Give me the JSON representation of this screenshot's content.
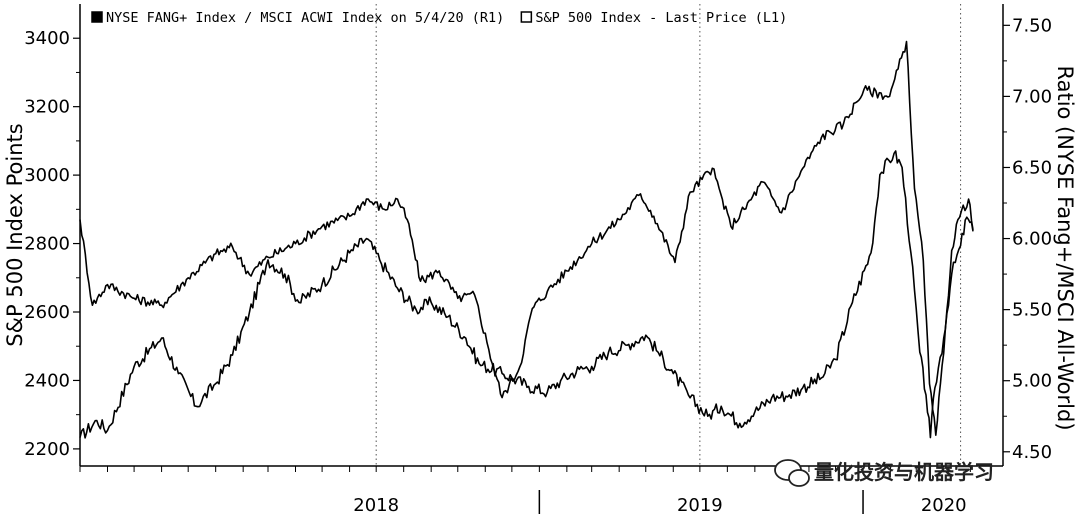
{
  "chart_data": {
    "type": "line",
    "title": "",
    "legend": {
      "placement": "top-left"
    },
    "grid": {
      "x": "dotted-vertical-at-year-mid",
      "y": false
    },
    "x_axis": {
      "labels": [
        "2018",
        "2019",
        "2020"
      ],
      "range": [
        "2017-08-01",
        "2020-05-04"
      ]
    },
    "y_axis_left": {
      "label": "S&P 500 Index Points",
      "ticks": [
        2200,
        2400,
        2600,
        2800,
        3000,
        3200,
        3400
      ],
      "range": [
        2150,
        3500
      ]
    },
    "y_axis_right": {
      "label": "Ratio (NYSE Fang+/MSCI All-World)",
      "ticks": [
        "4.50",
        "5.00",
        "5.50",
        "6.00",
        "6.50",
        "7.00",
        "7.50"
      ],
      "range": [
        4.4,
        7.65
      ]
    },
    "series": [
      {
        "name": "NYSE FANG+ Index / MSCI ACWI Index on 5/4/20 (R1)",
        "axis": "right",
        "marker": "filled-square",
        "color": "#000000",
        "points": [
          [
            "2017-08-01",
            4.6
          ],
          [
            "2017-08-20",
            4.72
          ],
          [
            "2017-09-01",
            4.65
          ],
          [
            "2017-10-01",
            5.1
          ],
          [
            "2017-11-01",
            5.3
          ],
          [
            "2017-11-20",
            5.05
          ],
          [
            "2017-12-10",
            4.82
          ],
          [
            "2018-01-01",
            4.98
          ],
          [
            "2018-01-20",
            5.18
          ],
          [
            "2018-02-08",
            5.48
          ],
          [
            "2018-03-01",
            5.85
          ],
          [
            "2018-03-20",
            5.75
          ],
          [
            "2018-04-05",
            5.55
          ],
          [
            "2018-05-01",
            5.68
          ],
          [
            "2018-06-01",
            5.9
          ],
          [
            "2018-06-20",
            6.0
          ],
          [
            "2018-07-05",
            5.85
          ],
          [
            "2018-07-25",
            5.65
          ],
          [
            "2018-08-15",
            5.5
          ],
          [
            "2018-09-01",
            5.55
          ],
          [
            "2018-09-20",
            5.45
          ],
          [
            "2018-10-10",
            5.3
          ],
          [
            "2018-10-25",
            5.12
          ],
          [
            "2018-11-20",
            5.05
          ],
          [
            "2018-12-01",
            5.02
          ],
          [
            "2018-12-20",
            4.96
          ],
          [
            "2019-01-10",
            4.92
          ],
          [
            "2019-01-25",
            5.0
          ],
          [
            "2019-02-15",
            5.08
          ],
          [
            "2019-03-01",
            5.1
          ],
          [
            "2019-03-20",
            5.2
          ],
          [
            "2019-04-10",
            5.25
          ],
          [
            "2019-05-01",
            5.32
          ],
          [
            "2019-05-15",
            5.2
          ],
          [
            "2019-06-01",
            5.05
          ],
          [
            "2019-06-20",
            4.88
          ],
          [
            "2019-07-10",
            4.75
          ],
          [
            "2019-07-25",
            4.82
          ],
          [
            "2019-08-15",
            4.7
          ],
          [
            "2019-09-01",
            4.78
          ],
          [
            "2019-09-20",
            4.88
          ],
          [
            "2019-10-10",
            4.9
          ],
          [
            "2019-10-25",
            4.95
          ],
          [
            "2019-11-15",
            5.02
          ],
          [
            "2019-12-01",
            5.15
          ],
          [
            "2019-12-20",
            5.55
          ],
          [
            "2020-01-10",
            5.9
          ],
          [
            "2020-01-20",
            6.45
          ],
          [
            "2020-02-05",
            6.6
          ],
          [
            "2020-02-14",
            6.5
          ],
          [
            "2020-02-24",
            5.9
          ],
          [
            "2020-03-05",
            5.2
          ],
          [
            "2020-03-12",
            4.9
          ],
          [
            "2020-03-17",
            4.6
          ],
          [
            "2020-03-22",
            4.95
          ],
          [
            "2020-04-01",
            5.3
          ],
          [
            "2020-04-10",
            5.75
          ],
          [
            "2020-04-20",
            5.95
          ],
          [
            "2020-04-27",
            6.15
          ],
          [
            "2020-05-04",
            6.05
          ]
        ]
      },
      {
        "name": "S&P 500 Index - Last Price (L1)",
        "axis": "left",
        "marker": "open-square",
        "color": "#000000",
        "points": [
          [
            "2017-08-01",
            2870
          ],
          [
            "2017-08-15",
            2620
          ],
          [
            "2017-09-01",
            2680
          ],
          [
            "2017-10-01",
            2640
          ],
          [
            "2017-11-01",
            2620
          ],
          [
            "2017-12-01",
            2700
          ],
          [
            "2018-01-01",
            2770
          ],
          [
            "2018-01-20",
            2790
          ],
          [
            "2018-02-08",
            2710
          ],
          [
            "2018-03-01",
            2760
          ],
          [
            "2018-04-01",
            2800
          ],
          [
            "2018-05-01",
            2850
          ],
          [
            "2018-06-01",
            2880
          ],
          [
            "2018-06-20",
            2930
          ],
          [
            "2018-07-10",
            2900
          ],
          [
            "2018-07-25",
            2930
          ],
          [
            "2018-08-05",
            2870
          ],
          [
            "2018-08-20",
            2690
          ],
          [
            "2018-09-10",
            2720
          ],
          [
            "2018-10-01",
            2640
          ],
          [
            "2018-10-20",
            2650
          ],
          [
            "2018-11-05",
            2490
          ],
          [
            "2018-11-20",
            2350
          ],
          [
            "2018-12-10",
            2440
          ],
          [
            "2018-12-24",
            2610
          ],
          [
            "2019-01-10",
            2660
          ],
          [
            "2019-02-01",
            2720
          ],
          [
            "2019-03-01",
            2800
          ],
          [
            "2019-04-01",
            2870
          ],
          [
            "2019-04-25",
            2945
          ],
          [
            "2019-05-10",
            2880
          ],
          [
            "2019-06-03",
            2745
          ],
          [
            "2019-06-20",
            2950
          ],
          [
            "2019-07-15",
            3020
          ],
          [
            "2019-08-05",
            2850
          ],
          [
            "2019-08-20",
            2900
          ],
          [
            "2019-09-10",
            2980
          ],
          [
            "2019-10-01",
            2890
          ],
          [
            "2019-10-25",
            3020
          ],
          [
            "2019-11-15",
            3110
          ],
          [
            "2019-12-10",
            3150
          ],
          [
            "2020-01-02",
            3250
          ],
          [
            "2020-01-31",
            3230
          ],
          [
            "2020-02-19",
            3390
          ],
          [
            "2020-02-28",
            2960
          ],
          [
            "2020-03-09",
            2750
          ],
          [
            "2020-03-16",
            2390
          ],
          [
            "2020-03-23",
            2240
          ],
          [
            "2020-04-01",
            2480
          ],
          [
            "2020-04-10",
            2780
          ],
          [
            "2020-04-17",
            2870
          ],
          [
            "2020-04-29",
            2930
          ],
          [
            "2020-05-04",
            2840
          ]
        ]
      }
    ]
  },
  "watermark": {
    "text": "量化投资与机器学习",
    "icon": "wechat-icon"
  }
}
